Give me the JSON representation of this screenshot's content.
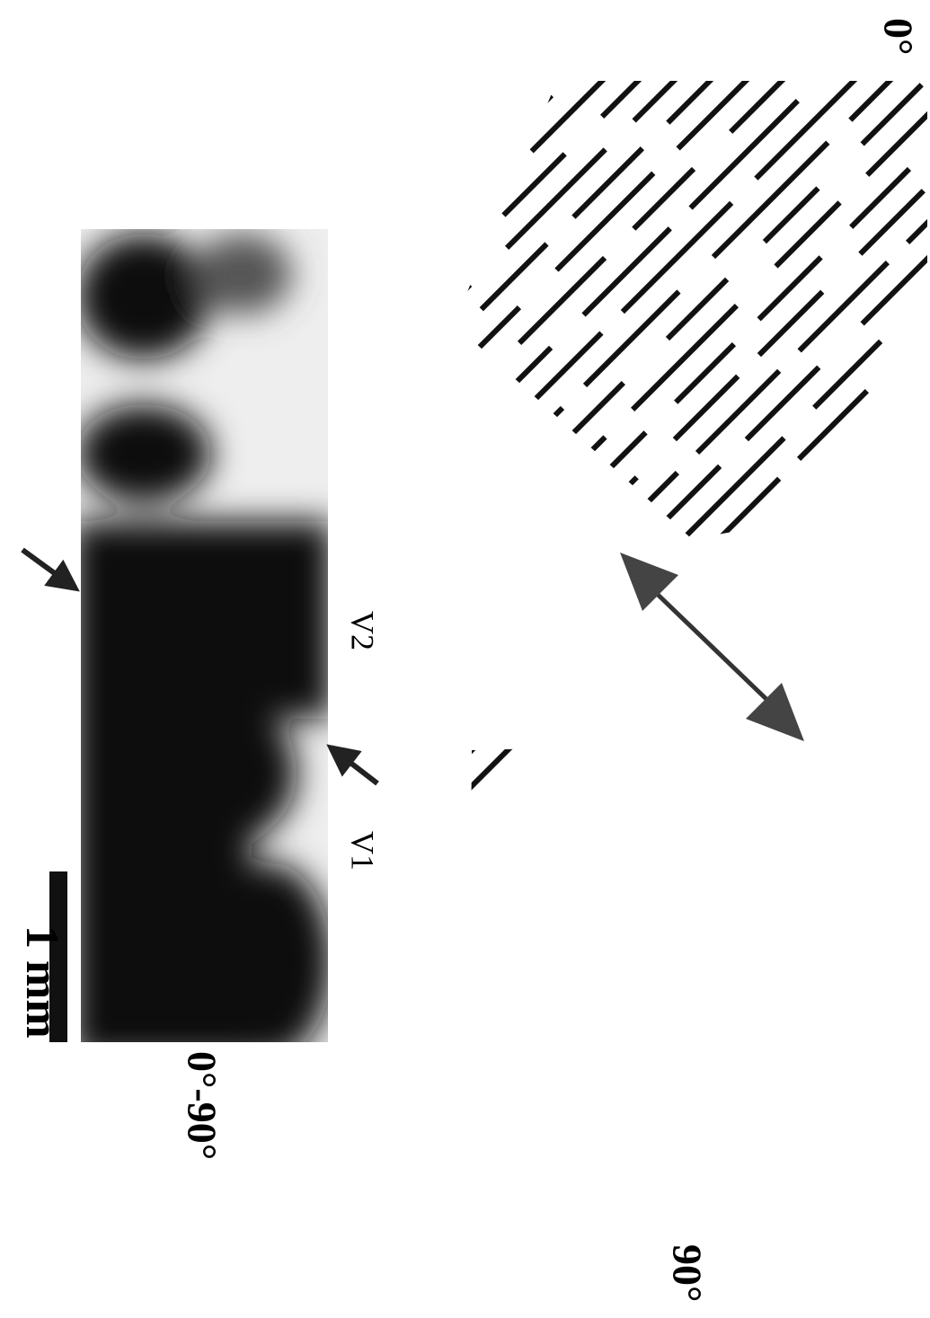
{
  "panel_a": {
    "scale_bar": "1 mm",
    "angle_label": "0°-90°",
    "areas": [
      "V1",
      "V2"
    ]
  },
  "panel_b": {
    "top_label": "0°",
    "bottom_label": "90°"
  }
}
